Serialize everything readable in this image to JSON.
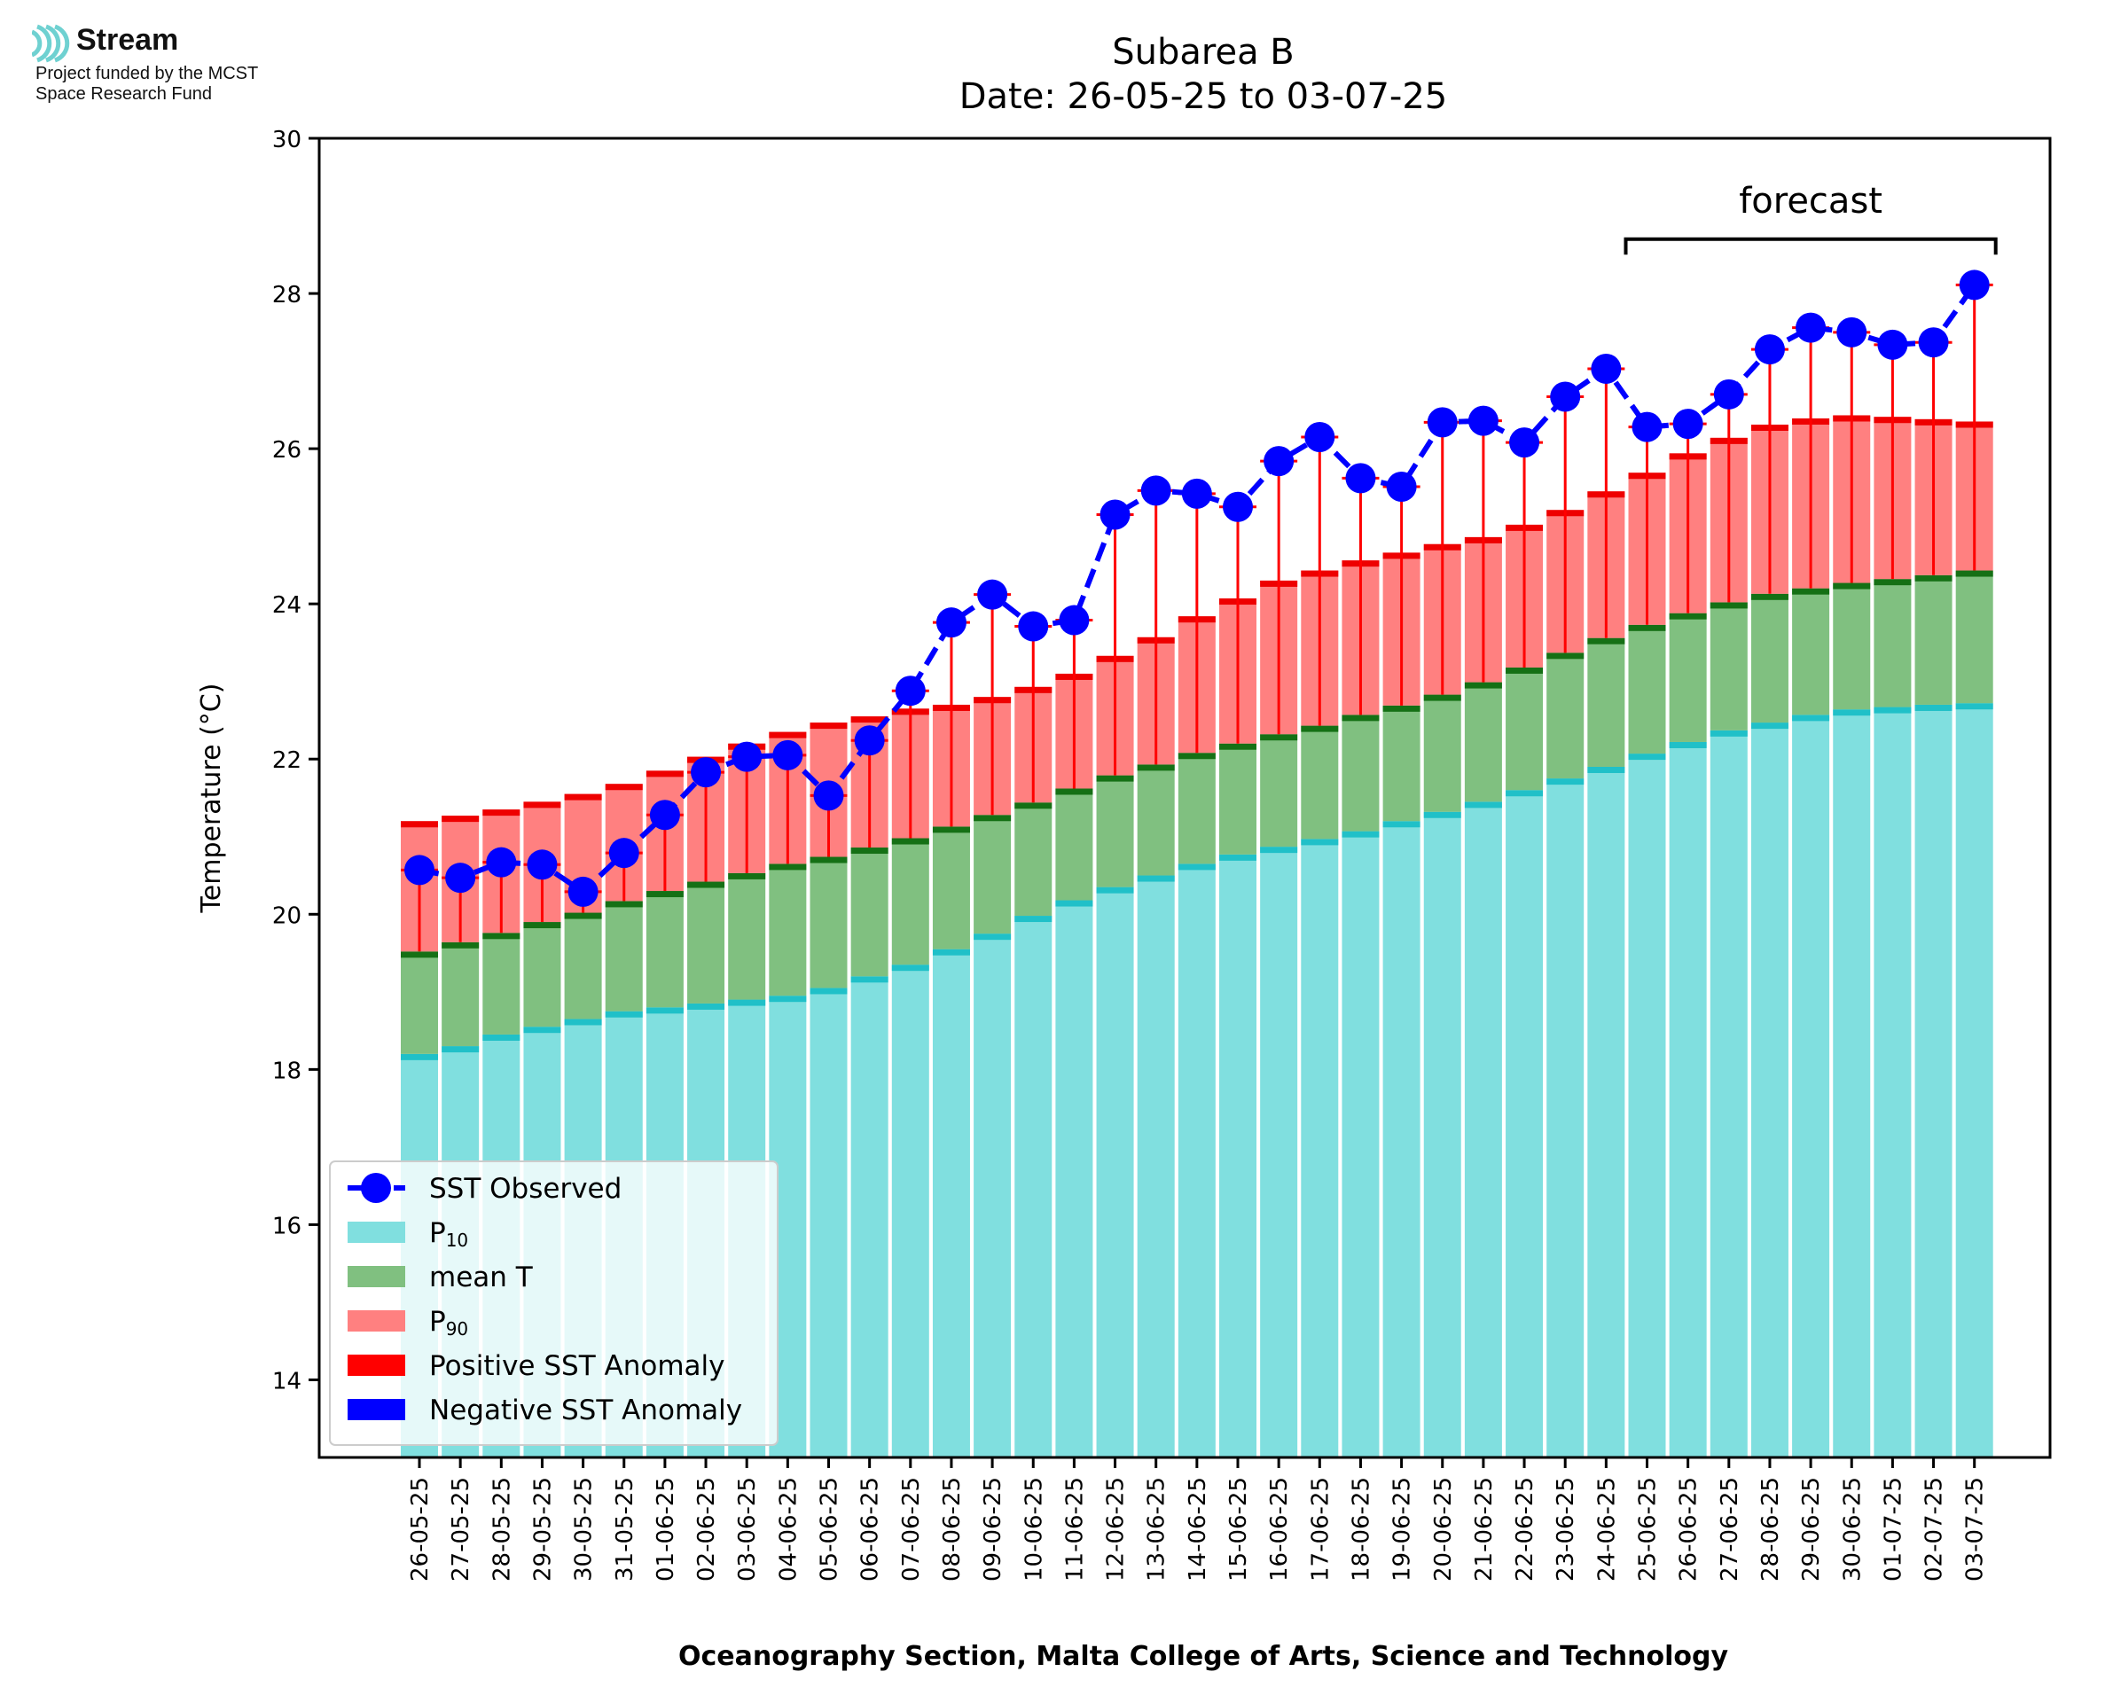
{
  "logo": {
    "name": "Stream",
    "line1": "Project funded by the MCST",
    "line2": "Space Research Fund",
    "color": "#6fd1d1"
  },
  "chart_data": {
    "type": "bar",
    "title": "Subarea B",
    "subtitle": "Date: 26-05-25 to 03-07-25",
    "ylabel": "Temperature (°C)",
    "xlabel": "Oceanography Section, Malta College of Arts, Science and Technology",
    "ylim": [
      13,
      30
    ],
    "yticks": [
      14,
      16,
      18,
      20,
      22,
      24,
      26,
      28,
      30
    ],
    "grid": false,
    "legend_position": "lower-left",
    "forecast_label": "forecast",
    "forecast_range": [
      "25-06-25",
      "03-07-25"
    ],
    "colors": {
      "p10": "#80dfdf",
      "p10_edge": "#20c0c8",
      "mean": "#80c080",
      "mean_edge": "#157015",
      "p90": "#ff8080",
      "p90_edge": "#ee0000",
      "observed": "#0000ff",
      "positive_anomaly": "#ff0000",
      "negative_anomaly": "#0000ff"
    },
    "legend": [
      {
        "label": "SST Observed",
        "kind": "line"
      },
      {
        "label": "P",
        "sub": "10",
        "kind": "patch",
        "color": "#80dfdf"
      },
      {
        "label": "mean T",
        "kind": "patch",
        "color": "#80c080"
      },
      {
        "label": "P",
        "sub": "90",
        "kind": "patch",
        "color": "#ff8080"
      },
      {
        "label": "Positive SST Anomaly",
        "kind": "patch",
        "color": "#ff0000"
      },
      {
        "label": "Negative SST Anomaly",
        "kind": "patch",
        "color": "#0000ff"
      }
    ],
    "categories": [
      "26-05-25",
      "27-05-25",
      "28-05-25",
      "29-05-25",
      "30-05-25",
      "31-05-25",
      "01-06-25",
      "02-06-25",
      "03-06-25",
      "04-06-25",
      "05-06-25",
      "06-06-25",
      "07-06-25",
      "08-06-25",
      "09-06-25",
      "10-06-25",
      "11-06-25",
      "12-06-25",
      "13-06-25",
      "14-06-25",
      "15-06-25",
      "16-06-25",
      "17-06-25",
      "18-06-25",
      "19-06-25",
      "20-06-25",
      "21-06-25",
      "22-06-25",
      "23-06-25",
      "24-06-25",
      "25-06-25",
      "26-06-25",
      "27-06-25",
      "28-06-25",
      "29-06-25",
      "30-06-25",
      "01-07-25",
      "02-07-25",
      "03-07-25"
    ],
    "series": [
      {
        "name": "P10",
        "values": [
          18.2,
          18.3,
          18.45,
          18.55,
          18.65,
          18.75,
          18.8,
          18.85,
          18.9,
          18.95,
          19.05,
          19.2,
          19.35,
          19.55,
          19.75,
          19.98,
          20.18,
          20.35,
          20.5,
          20.65,
          20.77,
          20.87,
          20.97,
          21.07,
          21.2,
          21.32,
          21.45,
          21.6,
          21.75,
          21.9,
          22.07,
          22.22,
          22.37,
          22.47,
          22.57,
          22.64,
          22.67,
          22.7,
          22.72
        ]
      },
      {
        "name": "mean T",
        "values": [
          19.52,
          19.64,
          19.76,
          19.9,
          20.02,
          20.17,
          20.3,
          20.42,
          20.53,
          20.65,
          20.74,
          20.86,
          20.98,
          21.13,
          21.28,
          21.44,
          21.62,
          21.79,
          21.93,
          22.08,
          22.2,
          22.32,
          22.43,
          22.57,
          22.69,
          22.83,
          22.99,
          23.18,
          23.37,
          23.56,
          23.73,
          23.88,
          24.02,
          24.13,
          24.2,
          24.27,
          24.32,
          24.37,
          24.43
        ]
      },
      {
        "name": "P90",
        "values": [
          21.2,
          21.27,
          21.35,
          21.45,
          21.55,
          21.68,
          21.85,
          22.03,
          22.2,
          22.35,
          22.47,
          22.55,
          22.65,
          22.7,
          22.8,
          22.93,
          23.1,
          23.33,
          23.57,
          23.84,
          24.07,
          24.3,
          24.43,
          24.56,
          24.66,
          24.77,
          24.86,
          25.02,
          25.21,
          25.45,
          25.69,
          25.94,
          26.14,
          26.31,
          26.39,
          26.43,
          26.41,
          26.38,
          26.35
        ]
      },
      {
        "name": "SST Observed",
        "values": [
          20.57,
          20.47,
          20.67,
          20.64,
          20.29,
          20.79,
          21.28,
          21.83,
          22.03,
          22.05,
          21.53,
          22.24,
          22.88,
          23.76,
          24.12,
          23.71,
          23.79,
          25.15,
          25.46,
          25.42,
          25.25,
          25.84,
          26.15,
          25.62,
          25.51,
          26.34,
          26.36,
          26.08,
          26.67,
          27.03,
          26.28,
          26.32,
          26.7,
          27.28,
          27.56,
          27.5,
          27.34,
          27.37,
          28.11
        ]
      }
    ]
  }
}
